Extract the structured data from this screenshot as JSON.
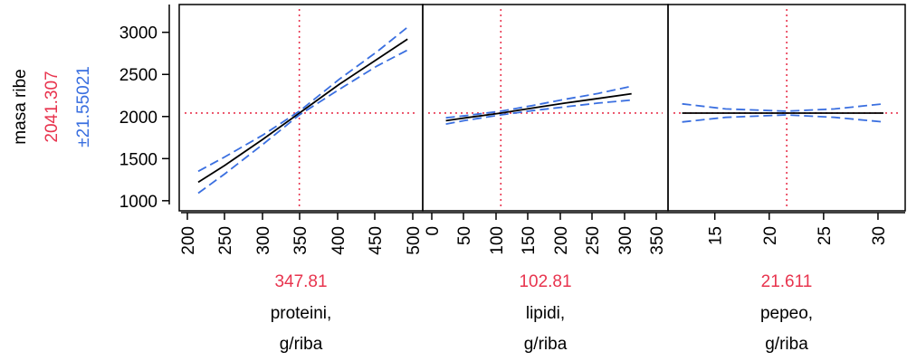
{
  "chart_data": {
    "type": "line",
    "y_axis": {
      "label": "masa ribe",
      "current_value": "2041.307",
      "ci_label": "±21.55021",
      "ticks": [
        1000,
        1500,
        2000,
        2500,
        3000
      ],
      "range": [
        880,
        3330
      ]
    },
    "panels": [
      {
        "factor": "proteini,",
        "unit": "g/riba",
        "current_label": "347.81",
        "current_x": 347.81,
        "xlim": [
          190,
          510
        ],
        "x_ticks": [
          200,
          250,
          300,
          350,
          400,
          450,
          500
        ],
        "series": [
          {
            "role": "prediction",
            "x": [
              215,
              250,
              300,
              347.81,
              400,
              450,
              490
            ],
            "y": [
              1220,
              1420,
              1730,
              2041,
              2380,
              2680,
              2920
            ]
          },
          {
            "role": "upper",
            "x": [
              215,
              250,
              300,
              347.81,
              400,
              450,
              490
            ],
            "y": [
              1350,
              1520,
              1780,
              2063,
              2440,
              2770,
              3060
            ]
          },
          {
            "role": "lower",
            "x": [
              215,
              250,
              300,
              347.81,
              400,
              450,
              490
            ],
            "y": [
              1090,
              1320,
              1670,
              2019,
              2320,
              2600,
              2790
            ]
          }
        ]
      },
      {
        "factor": "lipidi,",
        "unit": "g/riba",
        "current_label": "102.81",
        "current_x": 102.81,
        "xlim": [
          -15,
          355
        ],
        "x_ticks": [
          0,
          50,
          100,
          150,
          200,
          250,
          300,
          350
        ],
        "series": [
          {
            "role": "prediction",
            "x": [
              20,
              50,
              102.81,
              150,
              200,
              250,
              300
            ],
            "y": [
              1950,
              1985,
              2041,
              2100,
              2160,
              2215,
              2270
            ]
          },
          {
            "role": "upper",
            "x": [
              20,
              50,
              102.81,
              150,
              200,
              250,
              300
            ],
            "y": [
              1985,
              2010,
              2063,
              2130,
              2205,
              2275,
              2360
            ]
          },
          {
            "role": "lower",
            "x": [
              20,
              50,
              102.81,
              150,
              200,
              250,
              300
            ],
            "y": [
              1910,
              1955,
              2019,
              2070,
              2115,
              2160,
              2195
            ]
          }
        ]
      },
      {
        "factor": "pepeo,",
        "unit": "g/riba",
        "current_label": "21.611",
        "current_x": 21.611,
        "xlim": [
          10.7,
          32.5
        ],
        "x_ticks": [
          15,
          20,
          25,
          30
        ],
        "series": [
          {
            "role": "prediction",
            "x": [
              12,
              16,
              21.611,
              26,
              30.5
            ],
            "y": [
              2041,
              2041,
              2041,
              2041,
              2041
            ]
          },
          {
            "role": "upper",
            "x": [
              12,
              16,
              21.611,
              26,
              30.5
            ],
            "y": [
              2150,
              2090,
              2063,
              2090,
              2150
            ]
          },
          {
            "role": "lower",
            "x": [
              12,
              16,
              21.611,
              26,
              30.5
            ],
            "y": [
              1935,
              1990,
              2019,
              1990,
              1935
            ]
          }
        ]
      }
    ]
  },
  "colors": {
    "prediction": "#000000",
    "ci": "#3a6fe0",
    "current": "#e8344e",
    "axis": "#000000"
  }
}
